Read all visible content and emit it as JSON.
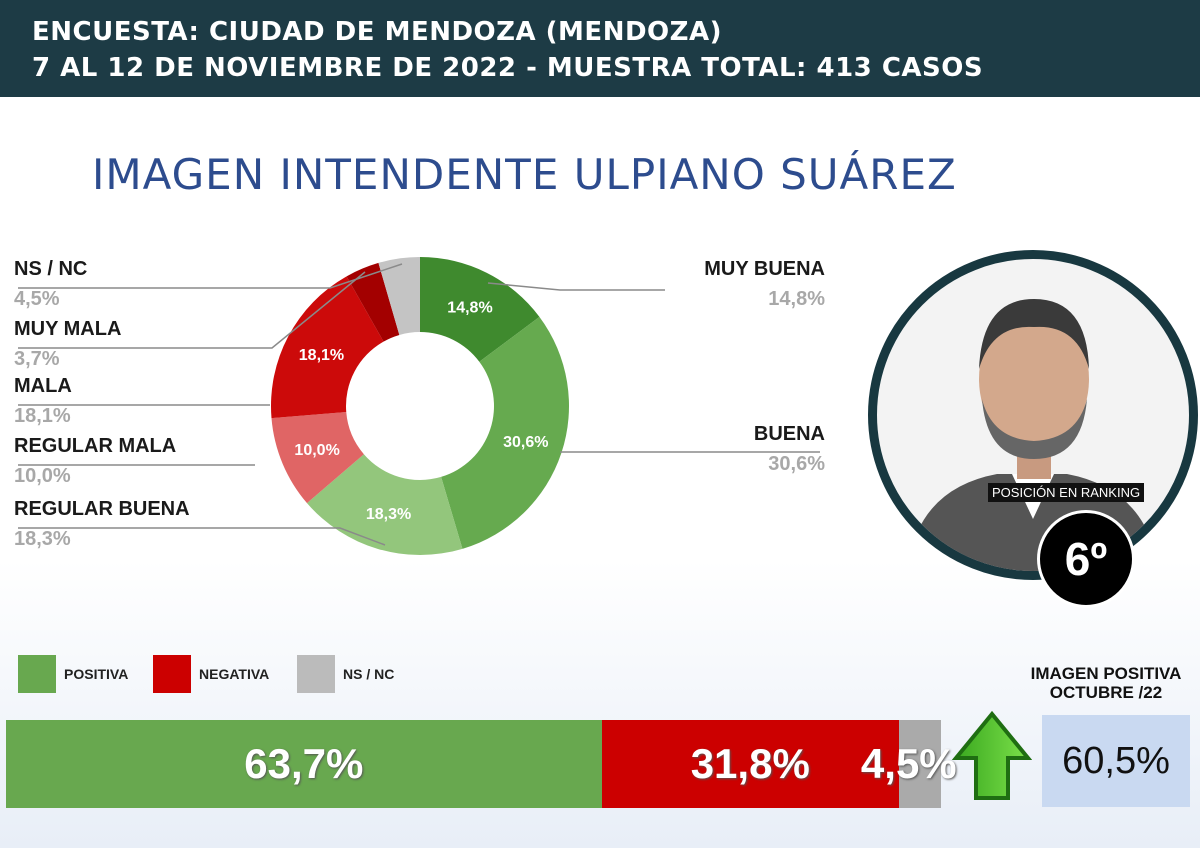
{
  "header": {
    "line1": "ENCUESTA: CIUDAD DE MENDOZA (MENDOZA)",
    "line2": "7 AL 12 DE NOVIEMBRE DE 2022 - MUESTRA TOTAL: 413 CASOS"
  },
  "chart_data": [
    {
      "type": "pie",
      "title": "IMAGEN INTENDENTE ULPIANO SUÁREZ",
      "donut": true,
      "slices": [
        {
          "label": "MUY BUENA",
          "value": 14.8,
          "text": "14,8%",
          "color": "#3f8a2e"
        },
        {
          "label": "BUENA",
          "value": 30.6,
          "text": "30,6%",
          "color": "#66aa4f"
        },
        {
          "label": "REGULAR BUENA",
          "value": 18.3,
          "text": "18,3%",
          "color": "#93c67c"
        },
        {
          "label": "REGULAR MALA",
          "value": 10.0,
          "text": "10,0%",
          "color": "#e06565"
        },
        {
          "label": "MALA",
          "value": 18.1,
          "text": "18,1%",
          "color": "#cc0a0a"
        },
        {
          "label": "MUY MALA",
          "value": 3.7,
          "text": "3,7%",
          "color": "#a30000"
        },
        {
          "label": "NS / NC",
          "value": 4.5,
          "text": "4,5%",
          "color": "#c4c4c4"
        }
      ]
    },
    {
      "type": "bar",
      "stacked": true,
      "series": [
        {
          "name": "POSITIVA",
          "value": 63.7,
          "text": "63,7%",
          "color": "#68a84f"
        },
        {
          "name": "NEGATIVA",
          "value": 31.8,
          "text": "31,8%",
          "color": "#cc0000"
        },
        {
          "name": "NS / NC",
          "value": 4.5,
          "text": "4,5%",
          "color": "#aaaaaa"
        }
      ]
    }
  ],
  "profile": {
    "ranking_label": "POSICIÓN EN RANKING",
    "ranking": "6º"
  },
  "comparison": {
    "label1": "IMAGEN POSITIVA",
    "label2": "OCTUBRE /22",
    "value": "60,5%",
    "trend": "up-arrow-icon"
  }
}
